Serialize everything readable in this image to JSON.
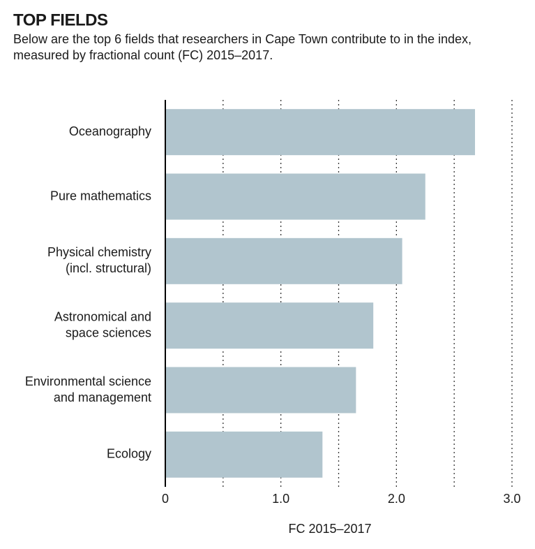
{
  "chart_data": {
    "type": "barh",
    "title": "TOP FIELDS",
    "subtitle": [
      "Below are the top 6 fields that researchers in Cape Town contribute to in the index,",
      "measured by fractional count (FC) 2015–2017."
    ],
    "categories": [
      [
        "Oceanography"
      ],
      [
        "Pure mathematics"
      ],
      [
        "Physical chemistry",
        "(incl. structural)"
      ],
      [
        "Astronomical and",
        "space sciences"
      ],
      [
        "Environmental science",
        "and management"
      ],
      [
        "Ecology"
      ]
    ],
    "values": [
      2.68,
      2.25,
      2.05,
      1.8,
      1.65,
      1.36
    ],
    "color": "#b1c5ce",
    "xlabel": "FC 2015–2017",
    "xlim": [
      0,
      3
    ],
    "xticks": [
      0,
      {
        "value": 1,
        "label": "1.0"
      },
      {
        "value": 2,
        "label": "2.0"
      },
      {
        "value": 3,
        "label": "3.0"
      }
    ],
    "xminor_ticks": [
      0.5,
      1.5,
      2.5
    ],
    "grid": true
  }
}
